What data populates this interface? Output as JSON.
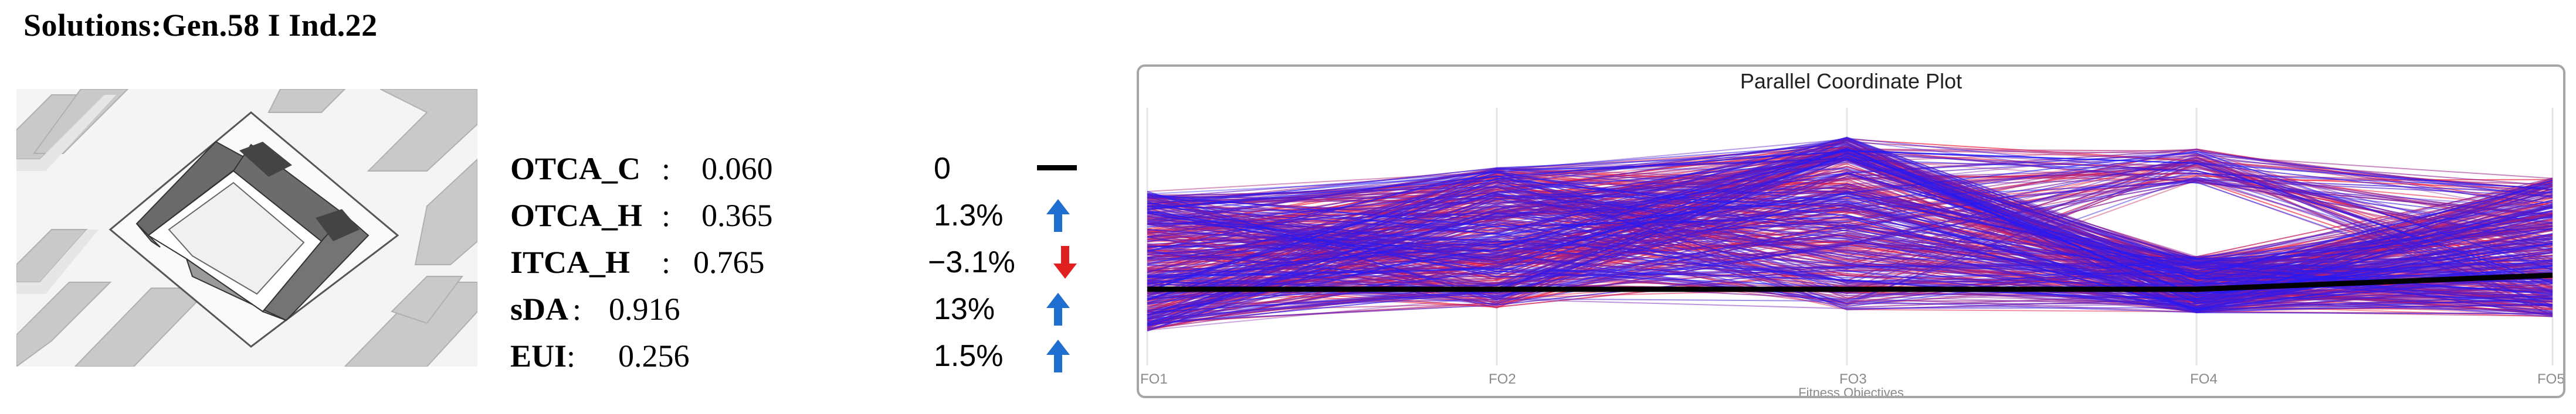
{
  "header": {
    "title": "Solutions:Gen.58 I Ind.22"
  },
  "metrics": [
    {
      "name": "OTCA_C",
      "sep": " :",
      "value": "0.060",
      "delta": "0",
      "trend": "neutral"
    },
    {
      "name": "OTCA_H",
      "sep": " :",
      "value": "0.365",
      "delta": "1.3%",
      "trend": "up"
    },
    {
      "name": "ITCA_H",
      "sep": " :",
      "value": "0.765",
      "delta": "−3.1%",
      "trend": "down"
    },
    {
      "name": "sDA",
      "sep": ":",
      "value": "0.916",
      "delta": "13%",
      "trend": "up"
    },
    {
      "name": "EUI",
      "sep": " :",
      "value": "0.256",
      "delta": "1.5%",
      "trend": "up"
    }
  ],
  "colors": {
    "up": "#1f6fd1",
    "down": "#e01f1f",
    "neutral": "#000000"
  },
  "chart_data": {
    "type": "parallel-coordinates",
    "title": "Parallel Coordinate Plot",
    "xlabel": "Fitness Objectives",
    "axes": [
      "FO1",
      "FO2",
      "FO3",
      "FO4",
      "FO5"
    ],
    "series_colors": {
      "early": "#ff2a2a",
      "late": "#1a1aff",
      "selected": "#000000"
    },
    "selected_line": [
      0.3,
      0.3,
      0.3,
      0.3,
      0.36
    ]
  }
}
